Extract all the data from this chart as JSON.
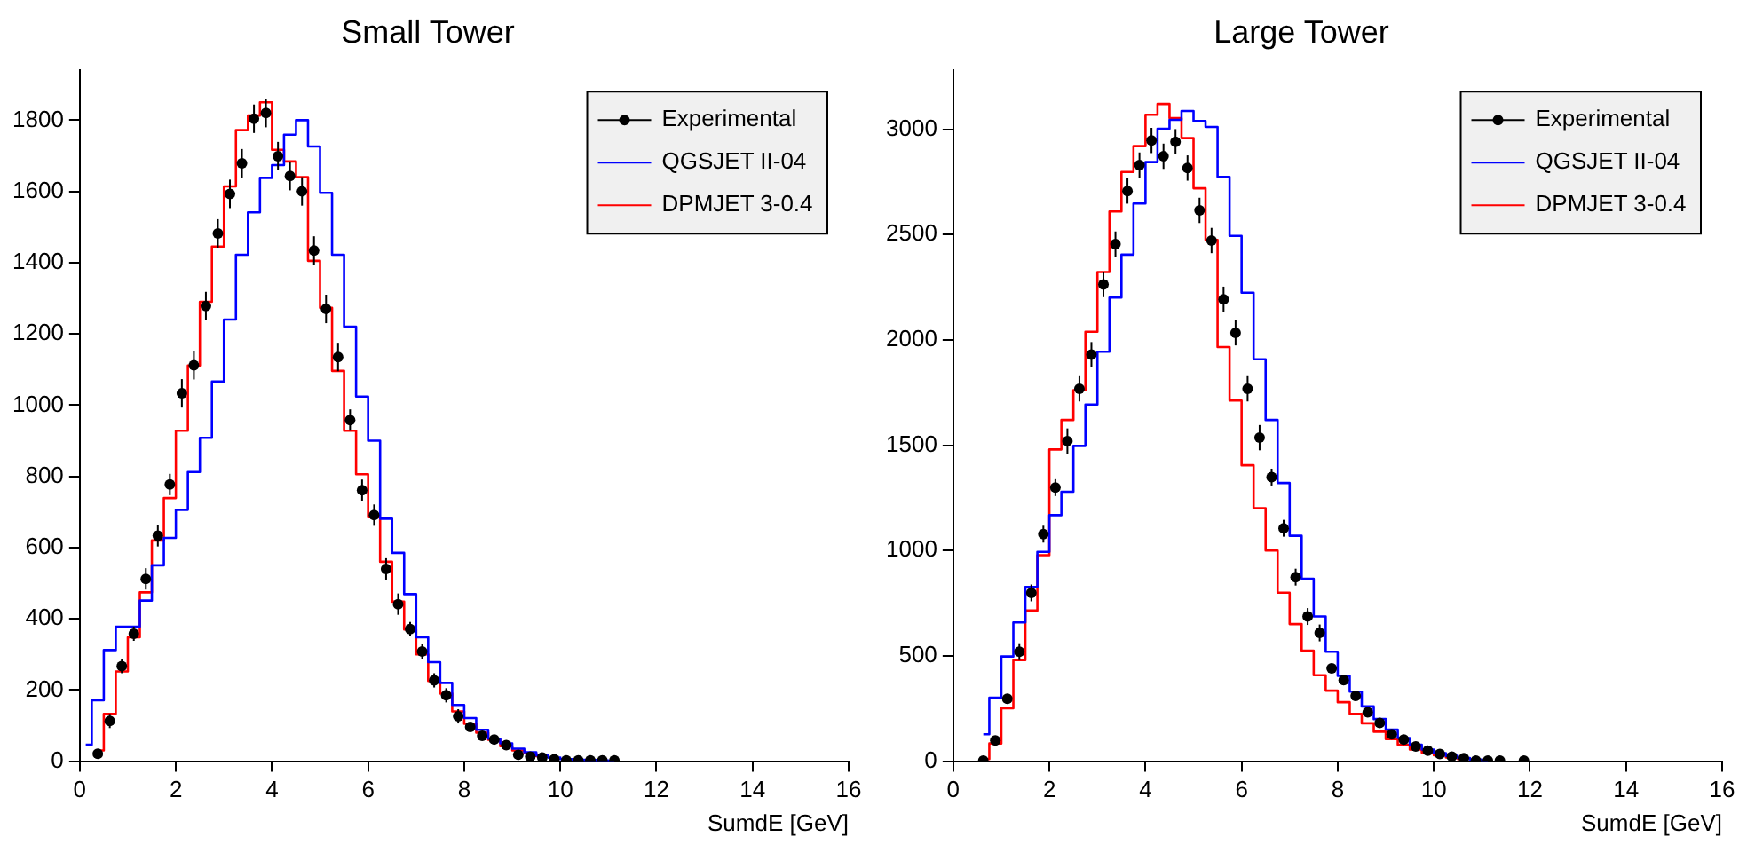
{
  "chart_data": [
    {
      "type": "step",
      "title": "Small Tower",
      "xlabel": "SumdE [GeV]",
      "xlim": [
        0,
        16
      ],
      "xticks": [
        0,
        2,
        4,
        6,
        8,
        10,
        12,
        14,
        16
      ],
      "ylim": [
        0,
        1940
      ],
      "yticks": [
        0,
        200,
        400,
        600,
        800,
        1000,
        1200,
        1400,
        1600,
        1800
      ],
      "grid": false,
      "legend": "top right",
      "series": [
        {
          "name": "Experimental",
          "type": "scatter",
          "marker": "circle",
          "color": "#000000",
          "x": [
            0.375,
            0.625,
            0.875,
            1.125,
            1.375,
            1.625,
            1.875,
            2.125,
            2.375,
            2.625,
            2.875,
            3.125,
            3.375,
            3.625,
            3.875,
            4.125,
            4.375,
            4.625,
            4.875,
            5.125,
            5.375,
            5.625,
            5.875,
            6.125,
            6.375,
            6.625,
            6.875,
            7.125,
            7.375,
            7.625,
            7.875,
            8.125,
            8.375,
            8.625,
            8.875,
            9.125,
            9.375,
            9.625,
            9.875,
            10.125,
            10.375,
            10.625,
            10.875,
            11.125
          ],
          "values": [
            21,
            113,
            267,
            358,
            512,
            633,
            777,
            1033,
            1112,
            1278,
            1482,
            1593,
            1679,
            1804,
            1820,
            1699,
            1643,
            1600,
            1434,
            1270,
            1135,
            958,
            761,
            691,
            540,
            441,
            371,
            308,
            227,
            185,
            126,
            96,
            71,
            61,
            45,
            18,
            13,
            10,
            5,
            2,
            2,
            2,
            2,
            2
          ],
          "errors": [
            null,
            20,
            20,
            20,
            30,
            30,
            30,
            40,
            40,
            40,
            40,
            40,
            40,
            40,
            40,
            40,
            40,
            40,
            40,
            40,
            40,
            30,
            30,
            30,
            30,
            30,
            20,
            20,
            20,
            20,
            20,
            null,
            null,
            null,
            null,
            null,
            null,
            null,
            null,
            null,
            null,
            null,
            null,
            null
          ]
        },
        {
          "name": "QGSJET II-04",
          "color": "#0000ff",
          "x": [
            0.125,
            0.375,
            0.625,
            0.875,
            1.125,
            1.375,
            1.625,
            1.875,
            2.125,
            2.375,
            2.625,
            2.875,
            3.125,
            3.375,
            3.625,
            3.875,
            4.125,
            4.375,
            4.625,
            4.875,
            5.125,
            5.375,
            5.625,
            5.875,
            6.125,
            6.375,
            6.625,
            6.875,
            7.125,
            7.375,
            7.625,
            7.875,
            8.125,
            8.375,
            8.625,
            8.875,
            9.125,
            9.375,
            9.625,
            9.875,
            10.125,
            10.375,
            10.625,
            10.875,
            11.125
          ],
          "values": [
            46,
            171,
            312,
            378,
            378,
            451,
            550,
            627,
            706,
            812,
            908,
            1066,
            1240,
            1422,
            1541,
            1638,
            1674,
            1759,
            1800,
            1726,
            1596,
            1422,
            1220,
            1024,
            900,
            681,
            585,
            469,
            348,
            278,
            220,
            158,
            121,
            88,
            63,
            50,
            35,
            25,
            16,
            10,
            6,
            4,
            3,
            2,
            1
          ]
        },
        {
          "name": "DPMJET 3-0.4",
          "color": "#ff0000",
          "x": [
            0.375,
            0.625,
            0.875,
            1.125,
            1.375,
            1.625,
            1.875,
            2.125,
            2.375,
            2.625,
            2.875,
            3.125,
            3.375,
            3.625,
            3.875,
            4.125,
            4.375,
            4.625,
            4.875,
            5.125,
            5.375,
            5.625,
            5.875,
            6.125,
            6.375,
            6.625,
            6.875,
            7.125,
            7.375,
            7.625,
            7.875,
            8.125,
            8.375,
            8.625,
            8.875,
            9.125,
            9.375,
            9.625
          ],
          "values": [
            30,
            133,
            252,
            348,
            474,
            620,
            739,
            928,
            1111,
            1290,
            1445,
            1614,
            1772,
            1813,
            1850,
            1717,
            1684,
            1640,
            1405,
            1273,
            1096,
            928,
            806,
            685,
            560,
            448,
            370,
            300,
            225,
            190,
            140,
            105,
            80,
            60,
            42,
            30,
            22,
            14
          ]
        }
      ]
    },
    {
      "type": "step",
      "title": "Large Tower",
      "xlabel": "SumdE [GeV]",
      "xlim": [
        0,
        16
      ],
      "xticks": [
        0,
        2,
        4,
        6,
        8,
        10,
        12,
        14,
        16
      ],
      "ylim": [
        0,
        3280
      ],
      "yticks": [
        0,
        500,
        1000,
        1500,
        2000,
        2500,
        3000
      ],
      "grid": false,
      "legend": "top right",
      "series": [
        {
          "name": "Experimental",
          "type": "scatter",
          "marker": "circle",
          "color": "#000000",
          "x": [
            0.625,
            0.875,
            1.125,
            1.375,
            1.625,
            1.875,
            2.125,
            2.375,
            2.625,
            2.875,
            3.125,
            3.375,
            3.625,
            3.875,
            4.125,
            4.375,
            4.625,
            4.875,
            5.125,
            5.375,
            5.625,
            5.875,
            6.125,
            6.375,
            6.625,
            6.875,
            7.125,
            7.375,
            7.625,
            7.875,
            8.125,
            8.375,
            8.625,
            8.875,
            9.125,
            9.375,
            9.625,
            9.875,
            10.125,
            10.375,
            10.625,
            10.875,
            11.125,
            11.375,
            11.875
          ],
          "values": [
            3,
            98,
            296,
            520,
            799,
            1078,
            1299,
            1520,
            1768,
            1930,
            2263,
            2455,
            2707,
            2830,
            2947,
            2872,
            2941,
            2816,
            2615,
            2472,
            2193,
            2034,
            1768,
            1536,
            1349,
            1106,
            874,
            687,
            609,
            441,
            385,
            310,
            232,
            182,
            128,
            103,
            70,
            50,
            34,
            22,
            14,
            3,
            3,
            3,
            3
          ],
          "errors": [
            null,
            null,
            null,
            40,
            40,
            40,
            40,
            60,
            60,
            60,
            60,
            60,
            60,
            60,
            60,
            60,
            60,
            60,
            60,
            60,
            60,
            60,
            60,
            60,
            40,
            40,
            40,
            40,
            40,
            null,
            null,
            null,
            null,
            null,
            null,
            null,
            null,
            null,
            null,
            null,
            null,
            null,
            null,
            null,
            null
          ]
        },
        {
          "name": "QGSJET II-04",
          "color": "#0000ff",
          "x": [
            0.625,
            0.875,
            1.125,
            1.375,
            1.625,
            1.875,
            2.125,
            2.375,
            2.625,
            2.875,
            3.125,
            3.375,
            3.625,
            3.875,
            4.125,
            4.375,
            4.625,
            4.875,
            5.125,
            5.375,
            5.625,
            5.875,
            6.125,
            6.375,
            6.625,
            6.875,
            7.125,
            7.375,
            7.625,
            7.875,
            8.125,
            8.375,
            8.625,
            8.875,
            9.125,
            9.375,
            9.625,
            9.875,
            10.125,
            10.375,
            10.625,
            10.875,
            11.125
          ],
          "values": [
            128,
            302,
            497,
            659,
            827,
            994,
            1168,
            1279,
            1497,
            1693,
            1944,
            2201,
            2405,
            2648,
            2844,
            3003,
            3045,
            3087,
            3039,
            3011,
            2774,
            2494,
            2224,
            1908,
            1620,
            1321,
            1070,
            866,
            687,
            520,
            405,
            330,
            260,
            200,
            150,
            110,
            78,
            55,
            38,
            25,
            15,
            8,
            4
          ]
        },
        {
          "name": "DPMJET 3-0.4",
          "color": "#ff0000",
          "x": [
            0.625,
            0.875,
            1.125,
            1.375,
            1.625,
            1.875,
            2.125,
            2.375,
            2.625,
            2.875,
            3.125,
            3.375,
            3.625,
            3.875,
            4.125,
            4.375,
            4.625,
            4.875,
            5.125,
            5.375,
            5.625,
            5.875,
            6.125,
            6.375,
            6.625,
            6.875,
            7.125,
            7.375,
            7.625,
            7.875,
            8.125,
            8.375,
            8.625,
            8.875,
            9.125,
            9.375,
            9.625,
            9.875,
            10.125,
            10.375,
            10.625
          ],
          "values": [
            10,
            84,
            251,
            480,
            715,
            978,
            1480,
            1620,
            1762,
            2039,
            2322,
            2610,
            2797,
            2920,
            3069,
            3120,
            3053,
            2958,
            2720,
            2475,
            1966,
            1712,
            1405,
            1201,
            1000,
            800,
            651,
            525,
            408,
            335,
            280,
            225,
            180,
            140,
            105,
            78,
            55,
            40,
            28,
            18,
            10
          ]
        }
      ]
    }
  ]
}
